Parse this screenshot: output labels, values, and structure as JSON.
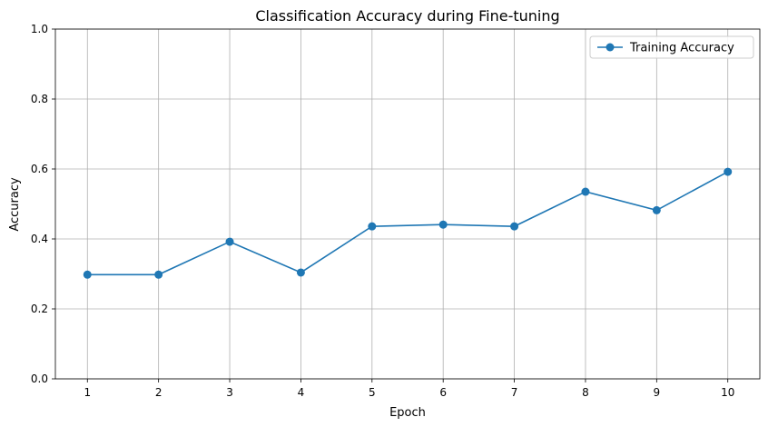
{
  "chart_data": {
    "type": "line",
    "title": "Classification Accuracy during Fine-tuning",
    "xlabel": "Epoch",
    "ylabel": "Accuracy",
    "x": [
      1,
      2,
      3,
      4,
      5,
      6,
      7,
      8,
      9,
      10
    ],
    "x_tick_labels": [
      "1",
      "2",
      "3",
      "4",
      "5",
      "6",
      "7",
      "8",
      "9",
      "10"
    ],
    "y_tick_labels": [
      "0.0",
      "0.2",
      "0.4",
      "0.6",
      "0.8",
      "1.0"
    ],
    "y_ticks": [
      0.0,
      0.2,
      0.4,
      0.6,
      0.8,
      1.0
    ],
    "xlim": [
      0.55,
      10.45
    ],
    "ylim": [
      0.0,
      1.0
    ],
    "grid": true,
    "legend_position": "top-right",
    "series": [
      {
        "name": "Training Accuracy",
        "color": "#1f77b4",
        "marker": "circle",
        "values": [
          0.298,
          0.298,
          0.392,
          0.304,
          0.436,
          0.441,
          0.436,
          0.535,
          0.482,
          0.592
        ]
      }
    ]
  }
}
